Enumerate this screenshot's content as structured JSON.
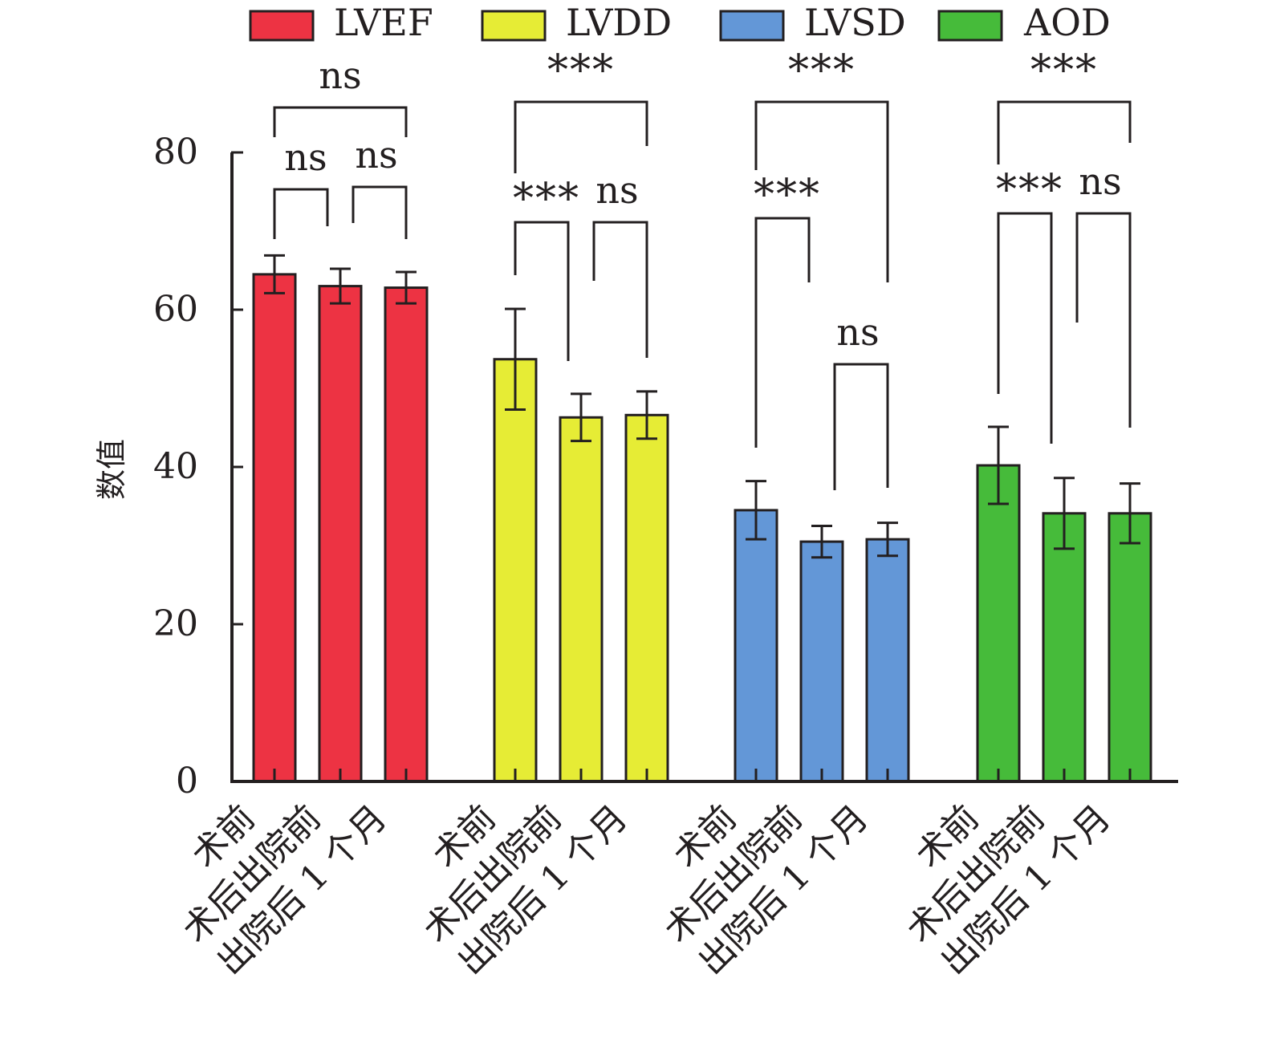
{
  "chart_data": {
    "type": "bar",
    "title": "",
    "xlabel": "",
    "ylabel": "数值",
    "ylim": [
      0,
      80
    ],
    "yticks": [
      "0",
      "20",
      "40",
      "60",
      "80"
    ],
    "grid": false,
    "legend_position": "top",
    "categories": [
      "术前",
      "术后出院前",
      "出院后 1 个月"
    ],
    "series": [
      {
        "name": "LVEF",
        "color": "#ed3343",
        "values": [
          64.5,
          63.0,
          62.8
        ],
        "errors": [
          2.4,
          2.2,
          2.0
        ],
        "significance": [
          {
            "from": 0,
            "to": 1,
            "label": "ns"
          },
          {
            "from": 1,
            "to": 2,
            "label": "ns"
          },
          {
            "from": 0,
            "to": 2,
            "label": "ns"
          }
        ]
      },
      {
        "name": "LVDD",
        "color": "#e6ec35",
        "values": [
          53.7,
          46.3,
          46.6
        ],
        "errors": [
          6.4,
          3.0,
          3.0
        ],
        "significance": [
          {
            "from": 0,
            "to": 1,
            "label": "***"
          },
          {
            "from": 1,
            "to": 2,
            "label": "ns"
          },
          {
            "from": 0,
            "to": 2,
            "label": "***"
          }
        ]
      },
      {
        "name": "LVSD",
        "color": "#6397d7",
        "values": [
          34.5,
          30.5,
          30.8
        ],
        "errors": [
          3.7,
          2.0,
          2.1
        ],
        "significance": [
          {
            "from": 0,
            "to": 1,
            "label": "***"
          },
          {
            "from": 1,
            "to": 2,
            "label": "ns"
          },
          {
            "from": 0,
            "to": 2,
            "label": "***"
          }
        ]
      },
      {
        "name": "AOD",
        "color": "#46bb3a",
        "values": [
          40.2,
          34.1,
          34.1
        ],
        "errors": [
          4.9,
          4.5,
          3.8
        ],
        "significance": [
          {
            "from": 0,
            "to": 1,
            "label": "***"
          },
          {
            "from": 1,
            "to": 2,
            "label": "ns"
          },
          {
            "from": 0,
            "to": 2,
            "label": "***"
          }
        ]
      }
    ]
  }
}
